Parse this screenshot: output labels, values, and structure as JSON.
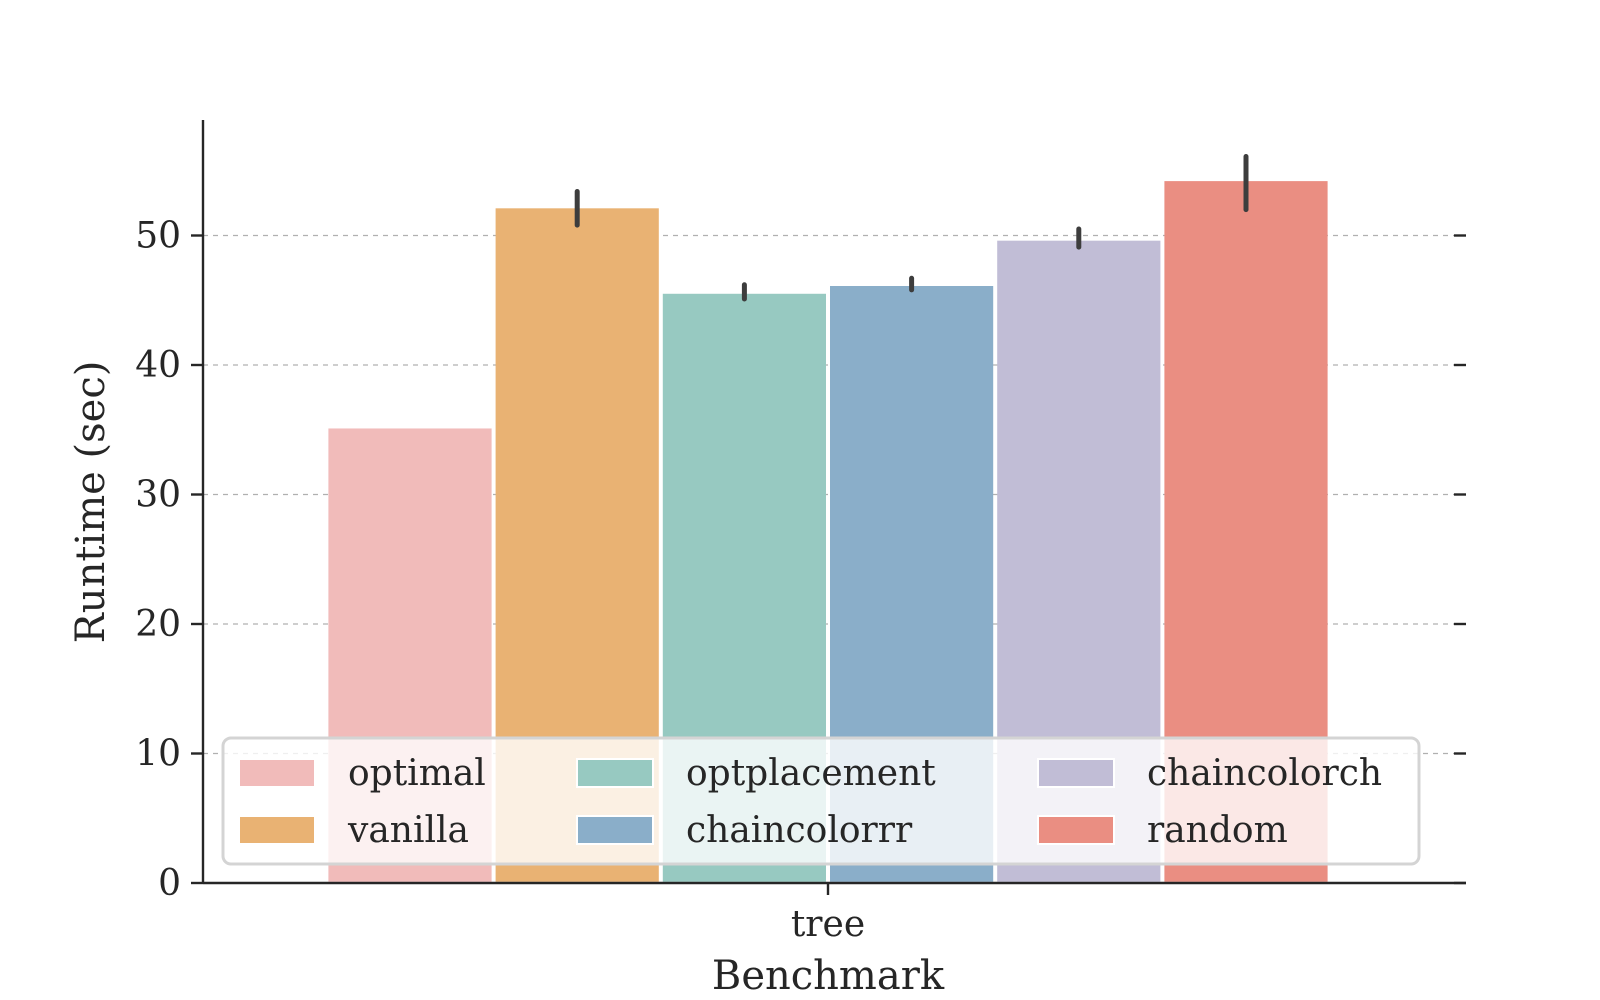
{
  "chart_data": {
    "type": "bar",
    "categories": [
      "tree"
    ],
    "series": [
      {
        "name": "optimal",
        "values": [
          35.1
        ],
        "error": null,
        "color": "#f1bbba"
      },
      {
        "name": "vanilla",
        "values": [
          52.1
        ],
        "error": [
          50.8,
          53.4
        ],
        "color": "#e9b273"
      },
      {
        "name": "optplacement",
        "values": [
          45.5
        ],
        "error": [
          45.1,
          46.2
        ],
        "color": "#97c9c1"
      },
      {
        "name": "chaincolorrr",
        "values": [
          46.1
        ],
        "error": [
          45.8,
          46.7
        ],
        "color": "#8aaec9"
      },
      {
        "name": "chaincolorch",
        "values": [
          49.6
        ],
        "error": [
          49.1,
          50.5
        ],
        "color": "#c1bdd6"
      },
      {
        "name": "random",
        "values": [
          54.2
        ],
        "error": [
          52.0,
          56.1
        ],
        "color": "#ea8e82"
      }
    ],
    "title": "",
    "xlabel": "Benchmark",
    "ylabel": "Runtime (sec)",
    "ylim": [
      0,
      59
    ],
    "yticks": [
      0,
      10,
      20,
      30,
      40,
      50
    ],
    "grid": "y-dashed",
    "legend": {
      "placement": "lower-center",
      "columns": 3
    }
  }
}
